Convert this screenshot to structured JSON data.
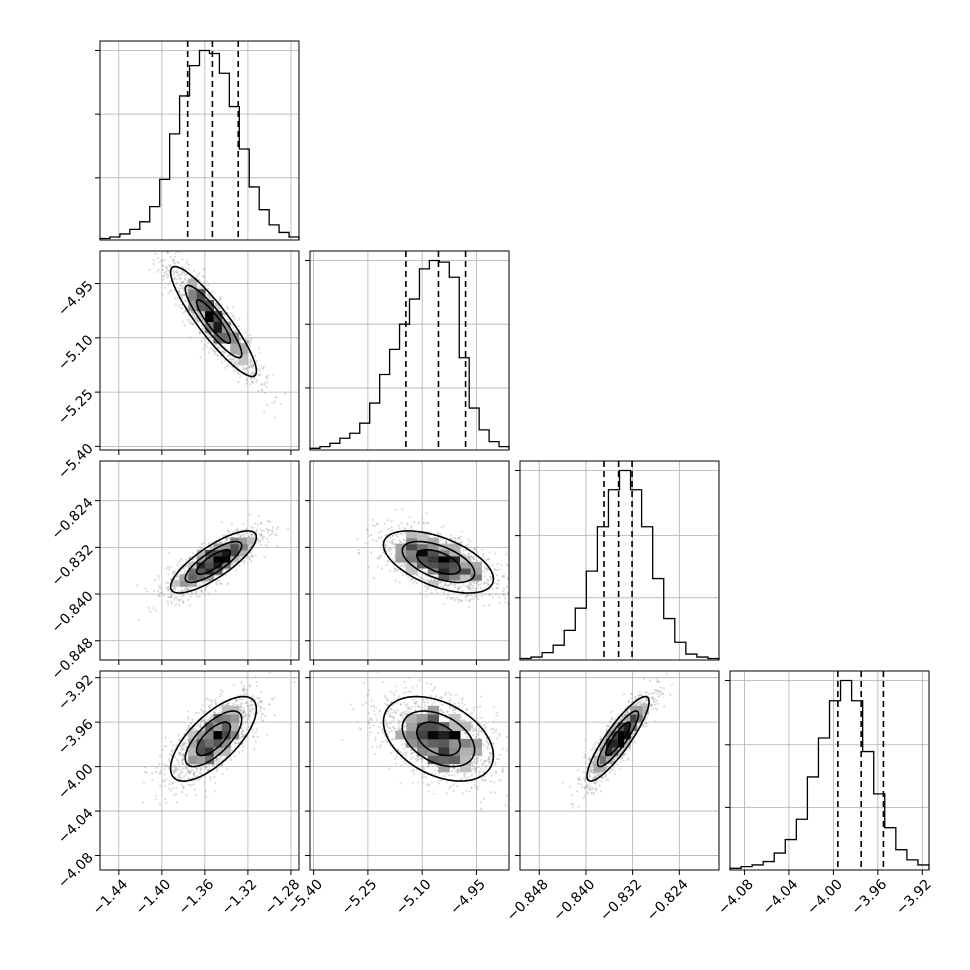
{
  "chart_data": {
    "type": "corner",
    "parameters": [
      {
        "ticks": [
          -1.44,
          -1.4,
          -1.36,
          -1.32,
          -1.28
        ],
        "tick_labels": [
          "−1.44",
          "−1.40",
          "−1.36",
          "−1.32",
          "−1.28"
        ],
        "range": [
          -1.4575,
          -1.2725
        ],
        "mean": -1.352,
        "sd": 0.021,
        "quantiles": [
          -1.376,
          -1.353,
          -1.329
        ]
      },
      {
        "ticks": [
          -5.4,
          -5.25,
          -5.1,
          -4.95
        ],
        "tick_labels": [
          "−5.40",
          "−5.25",
          "−5.10",
          "−4.95"
        ],
        "range": [
          -5.41,
          -4.86
        ],
        "mean": -5.055,
        "sd": 0.08,
        "quantiles": [
          -5.145,
          -5.055,
          -4.98
        ]
      },
      {
        "ticks": [
          -0.848,
          -0.84,
          -0.832,
          -0.824
        ],
        "tick_labels": [
          "−0.848",
          "−0.840",
          "−0.832",
          "−0.824"
        ],
        "range": [
          -0.8513,
          -0.8172
        ],
        "mean": -0.8345,
        "sd": 0.0028,
        "quantiles": [
          -0.8369,
          -0.8344,
          -0.8321
        ]
      },
      {
        "ticks": [
          -4.08,
          -4.04,
          -4.0,
          -3.96,
          -3.92
        ],
        "tick_labels": [
          "−4.08",
          "−4.04",
          "−4.00",
          "−3.96",
          "−3.92"
        ],
        "range": [
          -4.093,
          -3.914
        ],
        "mean": -3.975,
        "sd": 0.02,
        "quantiles": [
          -3.996,
          -3.975,
          -3.955
        ]
      }
    ],
    "histograms": [
      {
        "param": 0,
        "counts": [
          1,
          2,
          4,
          7,
          12,
          22,
          40,
          70,
          95,
          115,
          125,
          123,
          110,
          88,
          60,
          35,
          20,
          10,
          5,
          2
        ]
      },
      {
        "param": 1,
        "counts": [
          1,
          2,
          4,
          7,
          10,
          16,
          28,
          45,
          60,
          75,
          90,
          108,
          113,
          112,
          103,
          55,
          25,
          12,
          5,
          2
        ]
      },
      {
        "param": 2,
        "counts": [
          1,
          2,
          5,
          10,
          20,
          35,
          60,
          90,
          115,
          128,
          115,
          90,
          55,
          28,
          12,
          4,
          2,
          1
        ]
      },
      {
        "param": 3,
        "counts": [
          1,
          2,
          3,
          5,
          10,
          18,
          30,
          55,
          78,
          100,
          112,
          100,
          70,
          45,
          25,
          12,
          6,
          3
        ]
      }
    ],
    "correlations": {
      "1-0": -0.9,
      "2-0": 0.8,
      "2-1": -0.55,
      "3-0": 0.7,
      "3-1": -0.4,
      "3-2": 0.88
    },
    "title": "",
    "legend": null,
    "grid": true
  }
}
